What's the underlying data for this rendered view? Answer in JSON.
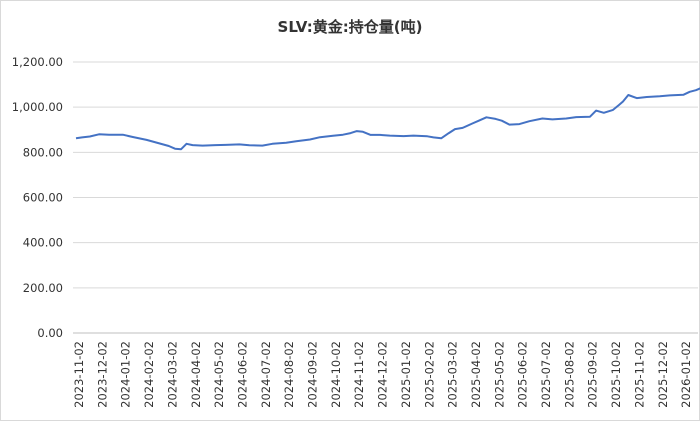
{
  "chart_data": {
    "type": "line",
    "title": "SLV:黄金:持仓量(吨)",
    "xlabel": "",
    "ylabel": "",
    "ylim": [
      0,
      1200
    ],
    "yticks": [
      0,
      200,
      400,
      600,
      800,
      1000,
      1200
    ],
    "ytick_labels": [
      "0.00",
      "200.00",
      "400.00",
      "600.00",
      "800.00",
      "1,000.00",
      "1,200.00"
    ],
    "xtick_labels": [
      "2023-11-02",
      "2023-12-02",
      "2024-01-02",
      "2024-02-02",
      "2024-03-02",
      "2024-04-02",
      "2024-05-02",
      "2024-06-02",
      "2024-07-02",
      "2024-08-02",
      "2024-09-02",
      "2024-10-02",
      "2024-11-02",
      "2024-12-02",
      "2025-01-02",
      "2025-02-02",
      "2025-03-02",
      "2025-04-02",
      "2025-05-02",
      "2025-06-02",
      "2025-07-02",
      "2025-08-02",
      "2025-09-02",
      "2025-10-02",
      "2025-11-02",
      "2025-12-02",
      "2026-01-02"
    ],
    "grid": "horizontal",
    "legend": "none",
    "color": "#4472c4",
    "series": [
      {
        "x": [
          "2023-11-02",
          "2023-11-10",
          "2023-11-20",
          "2023-12-02",
          "2023-12-15",
          "2024-01-02",
          "2024-01-15",
          "2024-02-02",
          "2024-02-15",
          "2024-03-02",
          "2024-03-10",
          "2024-03-18",
          "2024-03-25",
          "2024-04-02",
          "2024-04-15",
          "2024-05-02",
          "2024-05-15",
          "2024-06-02",
          "2024-06-15",
          "2024-07-02",
          "2024-07-15",
          "2024-08-02",
          "2024-08-15",
          "2024-09-02",
          "2024-09-15",
          "2024-10-02",
          "2024-10-15",
          "2024-10-25",
          "2024-11-02",
          "2024-11-10",
          "2024-11-20",
          "2024-12-02",
          "2024-12-15",
          "2025-01-02",
          "2025-01-15",
          "2025-02-02",
          "2025-02-10",
          "2025-02-20",
          "2025-03-02",
          "2025-03-10",
          "2025-03-20",
          "2025-04-02",
          "2025-04-10",
          "2025-04-20",
          "2025-05-02",
          "2025-05-10",
          "2025-05-20",
          "2025-06-02",
          "2025-06-15",
          "2025-07-02",
          "2025-07-15",
          "2025-08-02",
          "2025-08-15",
          "2025-09-02",
          "2025-09-10",
          "2025-09-20",
          "2025-10-02",
          "2025-10-10",
          "2025-10-15",
          "2025-10-22",
          "2025-11-02",
          "2025-11-15",
          "2025-12-02",
          "2025-12-15",
          "2026-01-02",
          "2026-01-10",
          "2026-01-18",
          "2026-01-25"
        ],
        "values": [
          862,
          866,
          870,
          880,
          878,
          878,
          868,
          855,
          843,
          828,
          816,
          814,
          838,
          832,
          830,
          832,
          833,
          835,
          831,
          830,
          838,
          842,
          849,
          857,
          867,
          873,
          878,
          885,
          894,
          891,
          877,
          877,
          874,
          872,
          874,
          871,
          866,
          862,
          885,
          903,
          908,
          928,
          940,
          955,
          948,
          940,
          923,
          925,
          938,
          950,
          946,
          950,
          956,
          958,
          985,
          975,
          988,
          1010,
          1025,
          1054,
          1040,
          1045,
          1048,
          1052,
          1055,
          1068,
          1075,
          1085
        ]
      }
    ]
  }
}
